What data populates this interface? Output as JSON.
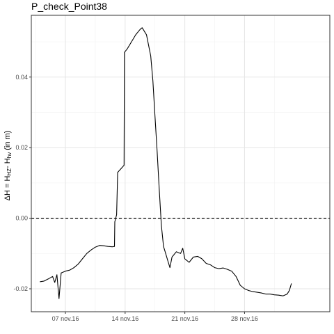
{
  "chart_data": {
    "type": "line",
    "title": "P_check_Point38",
    "xlabel": "",
    "ylabel": {
      "prefix": "ΔH = H",
      "sub1": "HZ",
      "middle": "- H",
      "sub2": "hv",
      "suffix": " (in m)"
    },
    "x_axis": {
      "type": "date",
      "range": [
        "2016-11-03",
        "2016-12-08"
      ],
      "ticks": [
        {
          "date": "2016-11-07",
          "label": "07 nov.16"
        },
        {
          "date": "2016-11-14",
          "label": "14 nov.16"
        },
        {
          "date": "2016-11-21",
          "label": "21 nov.16"
        },
        {
          "date": "2016-11-28",
          "label": "28 nov.16"
        }
      ]
    },
    "y_axis": {
      "range": [
        -0.0265,
        0.0575
      ],
      "ticks": [
        -0.02,
        0.0,
        0.02,
        0.04
      ],
      "tick_labels": [
        "-0.02",
        "0.00",
        "0.02",
        "0.04"
      ]
    },
    "grid": true,
    "reference_line": {
      "y": 0.0,
      "style": "dashed"
    },
    "series": [
      {
        "color": "#000000",
        "points": [
          [
            "2016-11-04 00:00",
            -0.018
          ],
          [
            "2016-11-04 12:00",
            -0.0178
          ],
          [
            "2016-11-05 00:00",
            -0.0172
          ],
          [
            "2016-11-05 12:00",
            -0.0165
          ],
          [
            "2016-11-05 18:00",
            -0.0182
          ],
          [
            "2016-11-06 00:00",
            -0.016
          ],
          [
            "2016-11-06 06:00",
            -0.0228
          ],
          [
            "2016-11-06 12:00",
            -0.0155
          ],
          [
            "2016-11-07 00:00",
            -0.015
          ],
          [
            "2016-11-07 12:00",
            -0.0147
          ],
          [
            "2016-11-08 00:00",
            -0.014
          ],
          [
            "2016-11-08 12:00",
            -0.013
          ],
          [
            "2016-11-09 00:00",
            -0.0115
          ],
          [
            "2016-11-09 12:00",
            -0.01
          ],
          [
            "2016-11-10 00:00",
            -0.009
          ],
          [
            "2016-11-10 12:00",
            -0.0082
          ],
          [
            "2016-11-11 00:00",
            -0.0077
          ],
          [
            "2016-11-11 12:00",
            -0.0078
          ],
          [
            "2016-11-12 00:00",
            -0.008
          ],
          [
            "2016-11-12 12:00",
            -0.0081
          ],
          [
            "2016-11-12 18:00",
            -0.008
          ],
          [
            "2016-11-12 19:00",
            -0.001
          ],
          [
            "2016-11-13 00:00",
            0.001
          ],
          [
            "2016-11-13 03:00",
            0.013
          ],
          [
            "2016-11-13 12:00",
            0.014
          ],
          [
            "2016-11-13 21:00",
            0.015
          ],
          [
            "2016-11-13 22:00",
            0.047
          ],
          [
            "2016-11-14 06:00",
            0.048
          ],
          [
            "2016-11-14 18:00",
            0.05
          ],
          [
            "2016-11-15 06:00",
            0.052
          ],
          [
            "2016-11-15 18:00",
            0.0535
          ],
          [
            "2016-11-16 00:00",
            0.054
          ],
          [
            "2016-11-16 12:00",
            0.052
          ],
          [
            "2016-11-17 00:00",
            0.046
          ],
          [
            "2016-11-17 06:00",
            0.039
          ],
          [
            "2016-11-17 12:00",
            0.029
          ],
          [
            "2016-11-17 18:00",
            0.019
          ],
          [
            "2016-11-18 00:00",
            0.008
          ],
          [
            "2016-11-18 06:00",
            -0.002
          ],
          [
            "2016-11-18 12:00",
            -0.008
          ],
          [
            "2016-11-18 18:00",
            -0.01
          ],
          [
            "2016-11-19 00:00",
            -0.012
          ],
          [
            "2016-11-19 06:00",
            -0.014
          ],
          [
            "2016-11-19 12:00",
            -0.011
          ],
          [
            "2016-11-20 00:00",
            -0.0095
          ],
          [
            "2016-11-20 12:00",
            -0.01
          ],
          [
            "2016-11-20 18:00",
            -0.0085
          ],
          [
            "2016-11-21 00:00",
            -0.0115
          ],
          [
            "2016-11-21 12:00",
            -0.0125
          ],
          [
            "2016-11-22 00:00",
            -0.011
          ],
          [
            "2016-11-22 12:00",
            -0.0108
          ],
          [
            "2016-11-23 00:00",
            -0.0115
          ],
          [
            "2016-11-23 12:00",
            -0.0128
          ],
          [
            "2016-11-24 00:00",
            -0.0132
          ],
          [
            "2016-11-24 12:00",
            -0.014
          ],
          [
            "2016-11-25 00:00",
            -0.0143
          ],
          [
            "2016-11-25 12:00",
            -0.0141
          ],
          [
            "2016-11-26 00:00",
            -0.0145
          ],
          [
            "2016-11-26 12:00",
            -0.015
          ],
          [
            "2016-11-27 00:00",
            -0.0165
          ],
          [
            "2016-11-27 12:00",
            -0.019
          ],
          [
            "2016-11-28 00:00",
            -0.02
          ],
          [
            "2016-11-28 12:00",
            -0.0205
          ],
          [
            "2016-11-29 00:00",
            -0.0208
          ],
          [
            "2016-11-29 12:00",
            -0.021
          ],
          [
            "2016-11-30 00:00",
            -0.0212
          ],
          [
            "2016-11-30 12:00",
            -0.0215
          ],
          [
            "2016-12-01 00:00",
            -0.0215
          ],
          [
            "2016-12-01 12:00",
            -0.0217
          ],
          [
            "2016-12-02 00:00",
            -0.0218
          ],
          [
            "2016-12-02 12:00",
            -0.022
          ],
          [
            "2016-12-03 00:00",
            -0.0215
          ],
          [
            "2016-12-03 06:00",
            -0.0205
          ],
          [
            "2016-12-03 12:00",
            -0.0185
          ]
        ]
      }
    ]
  }
}
